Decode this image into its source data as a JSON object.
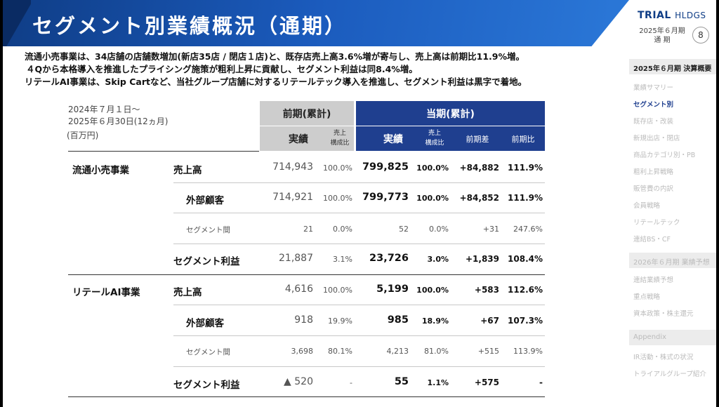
{
  "header": {
    "title": "セグメント別業績概況（通期）",
    "logo_main": "TRIAL",
    "logo_sub": "HLDGS",
    "period_line1": "2025年６月期",
    "period_line2": "通 期",
    "page_number": "8"
  },
  "summary": [
    "流通小売事業は、34店舗の店舗数増加(新店35店 / 閉店１店)と、既存店売上高3.6%増が寄与し、売上高は前期比11.9%増。",
    "４Qから本格導入を推進したプライシング施策が粗利上昇に貢献し、セグメント利益は同8.4%増。",
    "リテールAI事業は、Skip Cartなど、当社グループ店舗に対するリテールテック導入を推進し、セグメント利益は黒字で着地。"
  ],
  "table": {
    "period_line1": "2024年７月１日～",
    "period_line2": "2025年６月30日(12ヵ月)",
    "unit": "(百万円)",
    "prev_header": "前期(累計)",
    "cur_header": "当期(累計)",
    "col_actual": "実績",
    "col_ratio": "売上\n構成比",
    "col_diff": "前期差",
    "col_yoy": "前期比",
    "segments": [
      {
        "name": "流通小売事業",
        "rows": [
          {
            "label": "売上高",
            "prev": "714,943",
            "prev_ratio": "100.0%",
            "cur": "799,825",
            "cur_ratio": "100.0%",
            "diff": "+84,882",
            "yoy": "111.9%"
          },
          {
            "label": "外部顧客",
            "prev": "714,921",
            "prev_ratio": "100.0%",
            "cur": "799,773",
            "cur_ratio": "100.0%",
            "diff": "+84,852",
            "yoy": "111.9%"
          },
          {
            "label": "セグメント間",
            "prev": "21",
            "prev_ratio": "0.0%",
            "cur": "52",
            "cur_ratio": "0.0%",
            "diff": "+31",
            "yoy": "247.6%"
          },
          {
            "label": "セグメント利益",
            "prev": "21,887",
            "prev_ratio": "3.1%",
            "cur": "23,726",
            "cur_ratio": "3.0%",
            "diff": "+1,839",
            "yoy": "108.4%"
          }
        ]
      },
      {
        "name": "リテールAI事業",
        "rows": [
          {
            "label": "売上高",
            "prev": "4,616",
            "prev_ratio": "100.0%",
            "cur": "5,199",
            "cur_ratio": "100.0%",
            "diff": "+583",
            "yoy": "112.6%"
          },
          {
            "label": "外部顧客",
            "prev": "918",
            "prev_ratio": "19.9%",
            "cur": "985",
            "cur_ratio": "18.9%",
            "diff": "+67",
            "yoy": "107.3%"
          },
          {
            "label": "セグメント間",
            "prev": "3,698",
            "prev_ratio": "80.1%",
            "cur": "4,213",
            "cur_ratio": "81.0%",
            "diff": "+515",
            "yoy": "113.9%"
          },
          {
            "label": "セグメント利益",
            "prev": "▲ 520",
            "prev_ratio": "-",
            "cur": "55",
            "cur_ratio": "1.1%",
            "diff": "+575",
            "yoy": "-"
          }
        ]
      }
    ]
  },
  "sidebar": {
    "head1": "2025年６月期 決算概要",
    "items1": [
      "業績サマリー",
      "セグメント別",
      "既存店・改装",
      "新規出店・閉店",
      "商品カテゴリ別・PB",
      "粗利上昇戦略",
      "販管費の内訳",
      "会員戦略",
      "リテールテック",
      "連結BS・CF"
    ],
    "head2": "2026年６月期 業績予想",
    "items2": [
      "連結業績予想",
      "重点戦略",
      "資本政策・株主還元"
    ],
    "head3": "Appendix",
    "items3": [
      "IR活動・株式の状況",
      "トライアルグループ紹介"
    ]
  }
}
